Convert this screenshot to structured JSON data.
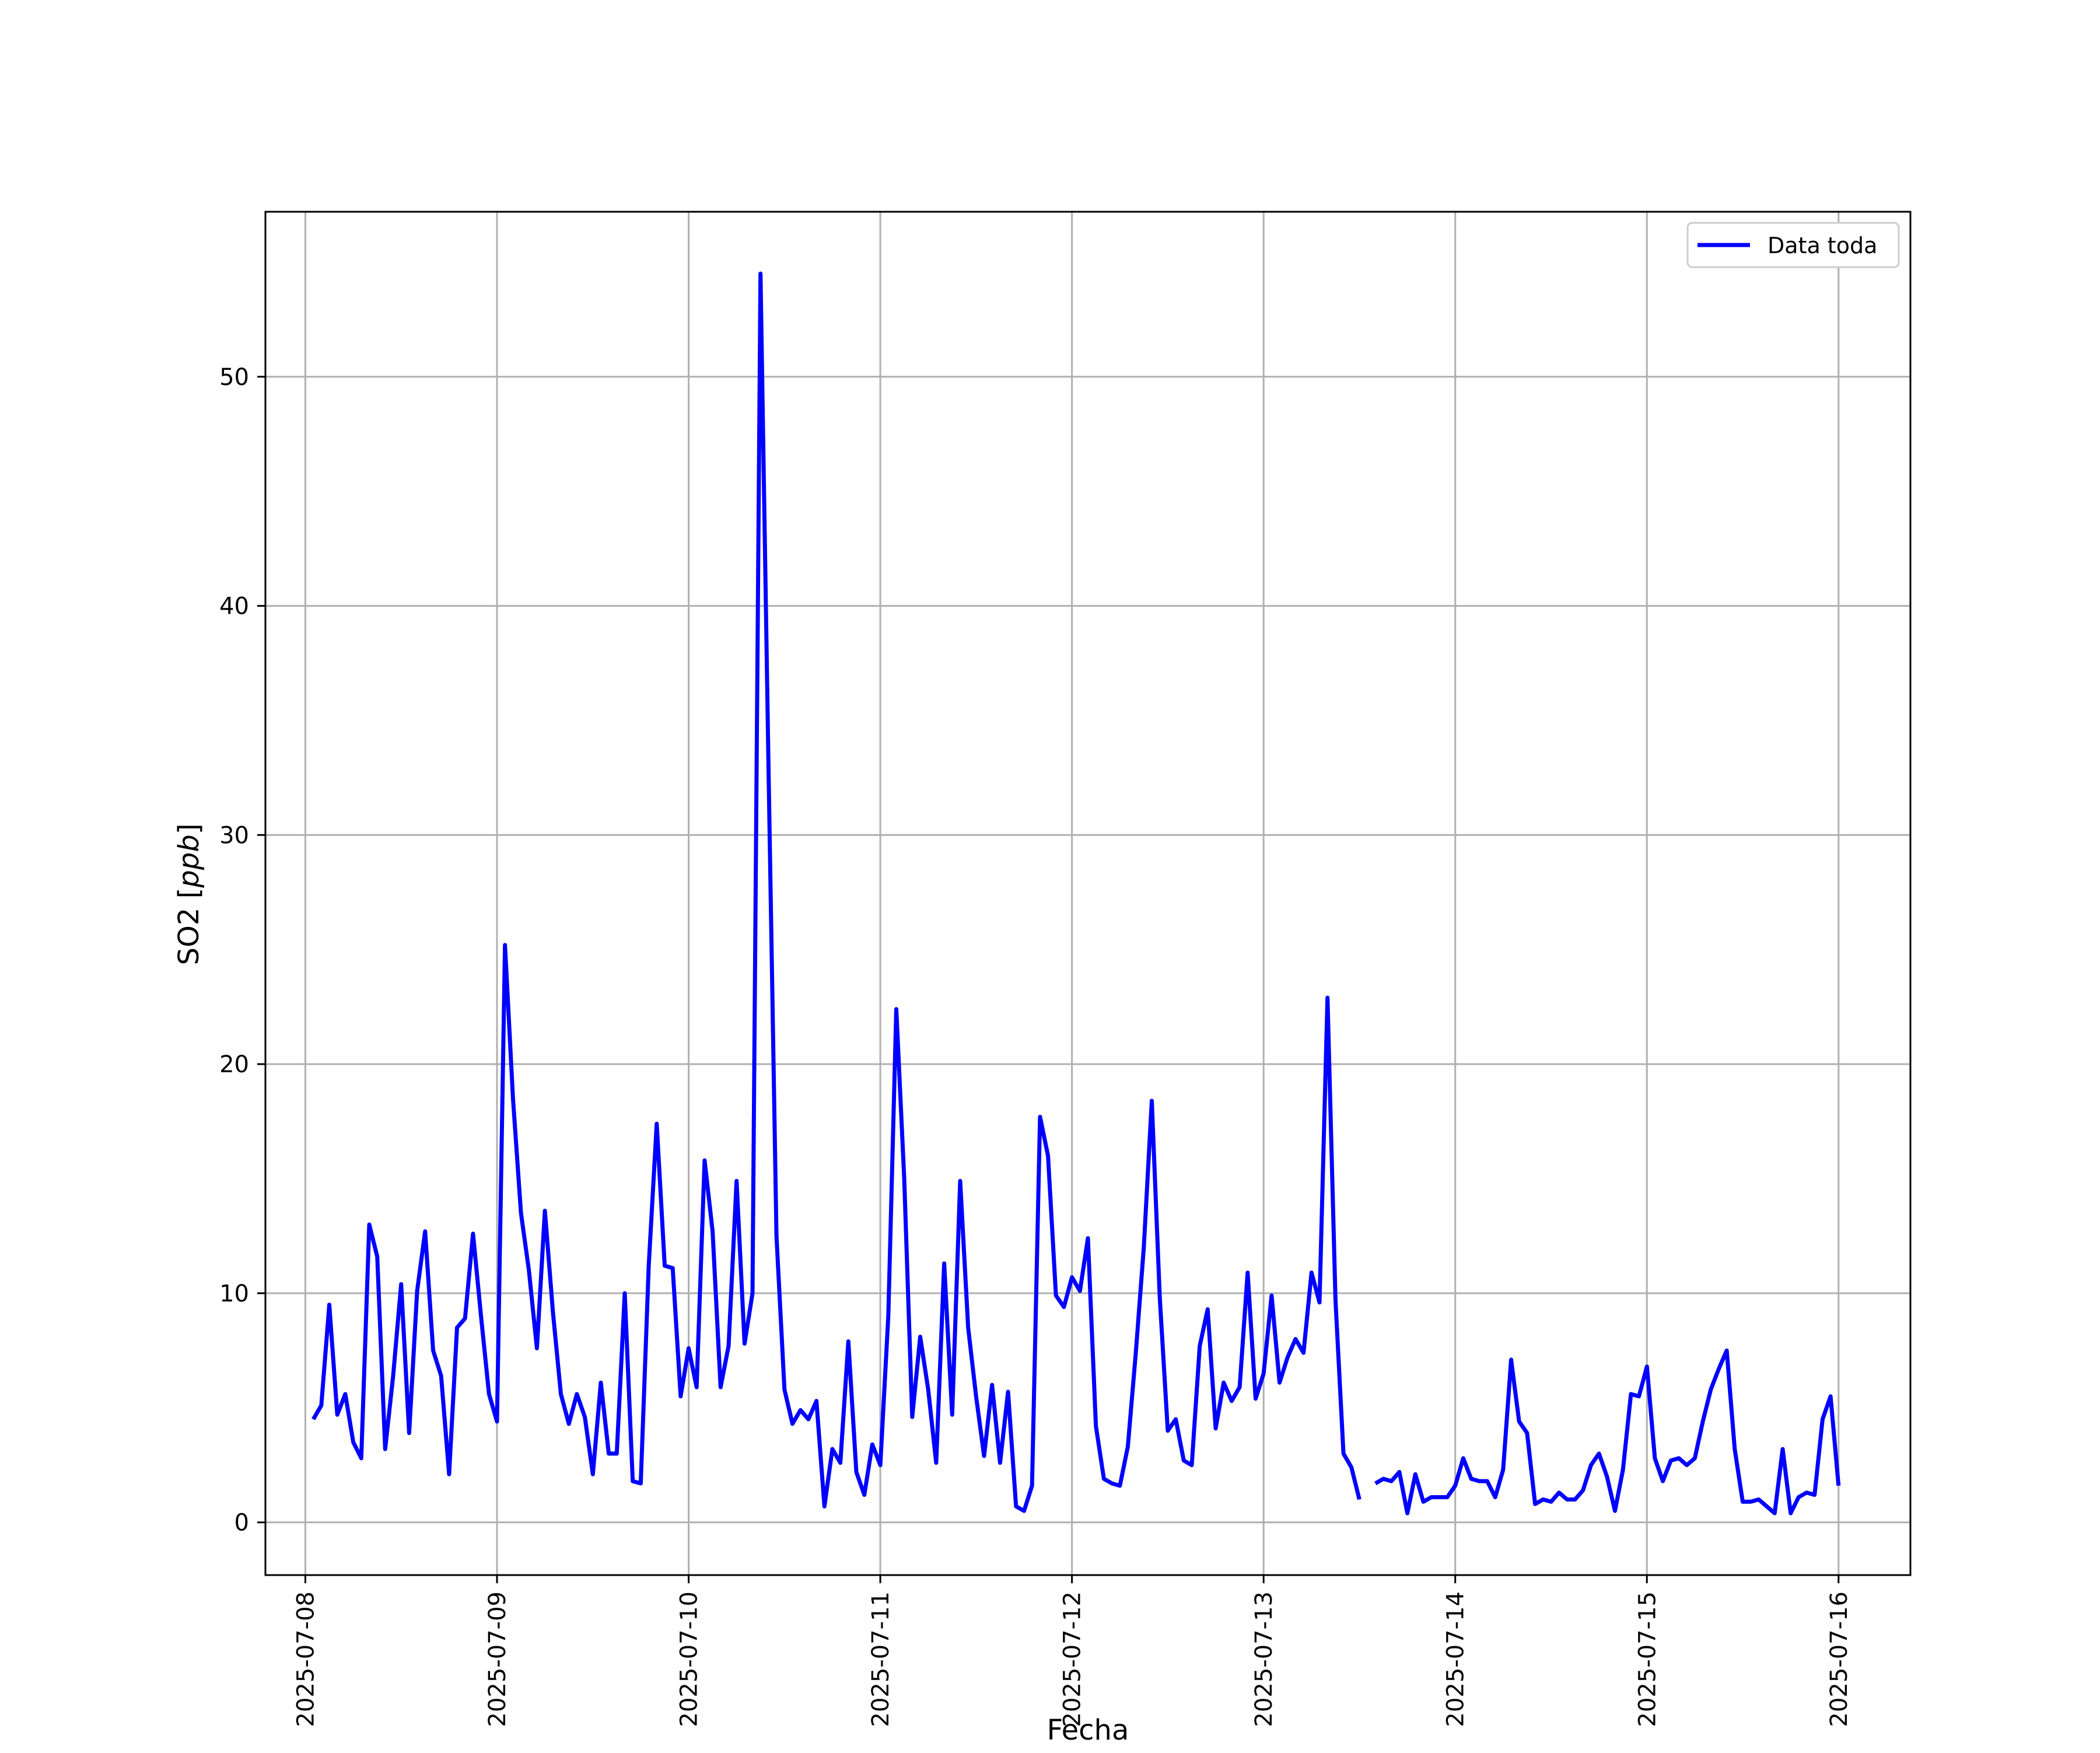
{
  "chart_data": {
    "type": "line",
    "title": "",
    "xlabel": "Fecha",
    "ylabel": "SO2 [ppb]",
    "ylabel_main": "SO2 [",
    "ylabel_unit": "ppb",
    "ylabel_close": "]",
    "xlim": [
      "2025-07-07 19:00",
      "2025-07-16 09:00"
    ],
    "ylim": [
      -2.3,
      57.2
    ],
    "x_ticks": [
      "2025-07-08",
      "2025-07-09",
      "2025-07-10",
      "2025-07-11",
      "2025-07-12",
      "2025-07-13",
      "2025-07-14",
      "2025-07-15",
      "2025-07-16"
    ],
    "y_ticks": [
      0,
      10,
      20,
      30,
      40,
      50
    ],
    "grid": true,
    "legend_position": "top-right",
    "series": [
      {
        "name": "Data toda",
        "color": "#0000ff",
        "points": [
          [
            "2025-07-08 01:00",
            4.5
          ],
          [
            "2025-07-08 02:00",
            5.1
          ],
          [
            "2025-07-08 03:00",
            9.5
          ],
          [
            "2025-07-08 04:00",
            4.7
          ],
          [
            "2025-07-08 05:00",
            5.6
          ],
          [
            "2025-07-08 06:00",
            3.5
          ],
          [
            "2025-07-08 07:00",
            2.8
          ],
          [
            "2025-07-08 08:00",
            13.0
          ],
          [
            "2025-07-08 09:00",
            11.6
          ],
          [
            "2025-07-08 10:00",
            3.2
          ],
          [
            "2025-07-08 11:00",
            6.4
          ],
          [
            "2025-07-08 12:00",
            10.4
          ],
          [
            "2025-07-08 13:00",
            3.9
          ],
          [
            "2025-07-08 14:00",
            10.1
          ],
          [
            "2025-07-08 15:00",
            12.7
          ],
          [
            "2025-07-08 16:00",
            7.5
          ],
          [
            "2025-07-08 17:00",
            6.4
          ],
          [
            "2025-07-08 18:00",
            2.1
          ],
          [
            "2025-07-08 19:00",
            8.5
          ],
          [
            "2025-07-08 20:00",
            8.9
          ],
          [
            "2025-07-08 21:00",
            12.6
          ],
          [
            "2025-07-08 22:00",
            9.0
          ],
          [
            "2025-07-08 23:00",
            5.6
          ],
          [
            "2025-07-09 00:00",
            4.4
          ],
          [
            "2025-07-09 01:00",
            25.2
          ],
          [
            "2025-07-09 02:00",
            18.5
          ],
          [
            "2025-07-09 03:00",
            13.5
          ],
          [
            "2025-07-09 04:00",
            11.0
          ],
          [
            "2025-07-09 05:00",
            7.6
          ],
          [
            "2025-07-09 06:00",
            13.6
          ],
          [
            "2025-07-09 07:00",
            9.2
          ],
          [
            "2025-07-09 08:00",
            5.6
          ],
          [
            "2025-07-09 09:00",
            4.3
          ],
          [
            "2025-07-09 10:00",
            5.6
          ],
          [
            "2025-07-09 11:00",
            4.6
          ],
          [
            "2025-07-09 12:00",
            2.1
          ],
          [
            "2025-07-09 13:00",
            6.1
          ],
          [
            "2025-07-09 14:00",
            3.0
          ],
          [
            "2025-07-09 15:00",
            3.0
          ],
          [
            "2025-07-09 16:00",
            10.0
          ],
          [
            "2025-07-09 17:00",
            1.8
          ],
          [
            "2025-07-09 18:00",
            1.7
          ],
          [
            "2025-07-09 19:00",
            11.2
          ],
          [
            "2025-07-09 20:00",
            17.4
          ],
          [
            "2025-07-09 21:00",
            11.2
          ],
          [
            "2025-07-09 22:00",
            11.1
          ],
          [
            "2025-07-09 23:00",
            5.5
          ],
          [
            "2025-07-10 00:00",
            7.6
          ],
          [
            "2025-07-10 01:00",
            5.9
          ],
          [
            "2025-07-10 02:00",
            15.8
          ],
          [
            "2025-07-10 03:00",
            12.7
          ],
          [
            "2025-07-10 04:00",
            5.9
          ],
          [
            "2025-07-10 05:00",
            7.7
          ],
          [
            "2025-07-10 06:00",
            14.9
          ],
          [
            "2025-07-10 07:00",
            7.8
          ],
          [
            "2025-07-10 08:00",
            10.0
          ],
          [
            "2025-07-10 09:00",
            54.5
          ],
          [
            "2025-07-10 10:00",
            33.0
          ],
          [
            "2025-07-10 11:00",
            12.5
          ],
          [
            "2025-07-10 12:00",
            5.8
          ],
          [
            "2025-07-10 13:00",
            4.3
          ],
          [
            "2025-07-10 14:00",
            4.9
          ],
          [
            "2025-07-10 15:00",
            4.5
          ],
          [
            "2025-07-10 16:00",
            5.3
          ],
          [
            "2025-07-10 17:00",
            0.7
          ],
          [
            "2025-07-10 18:00",
            3.2
          ],
          [
            "2025-07-10 19:00",
            2.6
          ],
          [
            "2025-07-10 20:00",
            7.9
          ],
          [
            "2025-07-10 21:00",
            2.2
          ],
          [
            "2025-07-10 22:00",
            1.2
          ],
          [
            "2025-07-10 23:00",
            3.4
          ],
          [
            "2025-07-11 00:00",
            2.5
          ],
          [
            "2025-07-11 01:00",
            9.0
          ],
          [
            "2025-07-11 02:00",
            22.4
          ],
          [
            "2025-07-11 03:00",
            15.0
          ],
          [
            "2025-07-11 04:00",
            4.6
          ],
          [
            "2025-07-11 05:00",
            8.1
          ],
          [
            "2025-07-11 06:00",
            5.8
          ],
          [
            "2025-07-11 07:00",
            2.6
          ],
          [
            "2025-07-11 08:00",
            11.3
          ],
          [
            "2025-07-11 09:00",
            4.7
          ],
          [
            "2025-07-11 10:00",
            14.9
          ],
          [
            "2025-07-11 11:00",
            8.5
          ],
          [
            "2025-07-11 12:00",
            5.5
          ],
          [
            "2025-07-11 13:00",
            2.9
          ],
          [
            "2025-07-11 14:00",
            6.0
          ],
          [
            "2025-07-11 15:00",
            2.6
          ],
          [
            "2025-07-11 16:00",
            5.7
          ],
          [
            "2025-07-11 17:00",
            0.7
          ],
          [
            "2025-07-11 18:00",
            0.5
          ],
          [
            "2025-07-11 19:00",
            1.6
          ],
          [
            "2025-07-11 20:00",
            17.7
          ],
          [
            "2025-07-11 21:00",
            16.0
          ],
          [
            "2025-07-11 22:00",
            9.9
          ],
          [
            "2025-07-11 23:00",
            9.4
          ],
          [
            "2025-07-12 00:00",
            10.7
          ],
          [
            "2025-07-12 01:00",
            10.1
          ],
          [
            "2025-07-12 02:00",
            12.4
          ],
          [
            "2025-07-12 03:00",
            4.2
          ],
          [
            "2025-07-12 04:00",
            1.9
          ],
          [
            "2025-07-12 05:00",
            1.7
          ],
          [
            "2025-07-12 06:00",
            1.6
          ],
          [
            "2025-07-12 07:00",
            3.3
          ],
          [
            "2025-07-12 08:00",
            7.4
          ],
          [
            "2025-07-12 09:00",
            12.0
          ],
          [
            "2025-07-12 10:00",
            18.4
          ],
          [
            "2025-07-12 11:00",
            9.8
          ],
          [
            "2025-07-12 12:00",
            4.0
          ],
          [
            "2025-07-12 13:00",
            4.5
          ],
          [
            "2025-07-12 14:00",
            2.7
          ],
          [
            "2025-07-12 15:00",
            2.5
          ],
          [
            "2025-07-12 16:00",
            7.7
          ],
          [
            "2025-07-12 17:00",
            9.3
          ],
          [
            "2025-07-12 18:00",
            4.1
          ],
          [
            "2025-07-12 19:00",
            6.1
          ],
          [
            "2025-07-12 20:00",
            5.3
          ],
          [
            "2025-07-12 21:00",
            5.9
          ],
          [
            "2025-07-12 22:00",
            10.9
          ],
          [
            "2025-07-12 23:00",
            5.4
          ],
          [
            "2025-07-13 00:00",
            6.5
          ],
          [
            "2025-07-13 01:00",
            9.9
          ],
          [
            "2025-07-13 02:00",
            6.1
          ],
          [
            "2025-07-13 03:00",
            7.2
          ],
          [
            "2025-07-13 04:00",
            8.0
          ],
          [
            "2025-07-13 05:00",
            7.4
          ],
          [
            "2025-07-13 06:00",
            10.9
          ],
          [
            "2025-07-13 07:00",
            9.6
          ],
          [
            "2025-07-13 08:00",
            22.9
          ],
          [
            "2025-07-13 09:00",
            9.7
          ],
          [
            "2025-07-13 10:00",
            3.0
          ],
          [
            "2025-07-13 11:00",
            2.4
          ],
          [
            "2025-07-13 12:00",
            1.0
          ],
          null,
          [
            "2025-07-13 14:00",
            1.7
          ],
          [
            "2025-07-13 15:00",
            1.9
          ],
          [
            "2025-07-13 16:00",
            1.8
          ],
          [
            "2025-07-13 17:00",
            2.2
          ],
          [
            "2025-07-13 18:00",
            0.4
          ],
          [
            "2025-07-13 19:00",
            2.1
          ],
          [
            "2025-07-13 20:00",
            0.9
          ],
          [
            "2025-07-13 21:00",
            1.1
          ],
          [
            "2025-07-13 22:00",
            1.1
          ],
          [
            "2025-07-13 23:00",
            1.1
          ],
          [
            "2025-07-14 00:00",
            1.6
          ],
          [
            "2025-07-14 01:00",
            2.8
          ],
          [
            "2025-07-14 02:00",
            1.9
          ],
          [
            "2025-07-14 03:00",
            1.8
          ],
          [
            "2025-07-14 04:00",
            1.8
          ],
          [
            "2025-07-14 05:00",
            1.1
          ],
          [
            "2025-07-14 06:00",
            2.3
          ],
          [
            "2025-07-14 07:00",
            7.1
          ],
          [
            "2025-07-14 08:00",
            4.4
          ],
          [
            "2025-07-14 09:00",
            3.9
          ],
          [
            "2025-07-14 10:00",
            0.8
          ],
          [
            "2025-07-14 11:00",
            1.0
          ],
          [
            "2025-07-14 12:00",
            0.9
          ],
          [
            "2025-07-14 13:00",
            1.3
          ],
          [
            "2025-07-14 14:00",
            1.0
          ],
          [
            "2025-07-14 15:00",
            1.0
          ],
          [
            "2025-07-14 16:00",
            1.4
          ],
          [
            "2025-07-14 17:00",
            2.5
          ],
          [
            "2025-07-14 18:00",
            3.0
          ],
          [
            "2025-07-14 19:00",
            2.0
          ],
          [
            "2025-07-14 20:00",
            0.5
          ],
          [
            "2025-07-14 21:00",
            2.3
          ],
          [
            "2025-07-14 22:00",
            5.6
          ],
          [
            "2025-07-14 23:00",
            5.5
          ],
          [
            "2025-07-15 00:00",
            6.8
          ],
          [
            "2025-07-15 01:00",
            2.8
          ],
          [
            "2025-07-15 02:00",
            1.8
          ],
          [
            "2025-07-15 03:00",
            2.7
          ],
          [
            "2025-07-15 04:00",
            2.8
          ],
          [
            "2025-07-15 05:00",
            2.5
          ],
          [
            "2025-07-15 06:00",
            2.8
          ],
          [
            "2025-07-15 07:00",
            4.4
          ],
          [
            "2025-07-15 08:00",
            5.8
          ],
          [
            "2025-07-15 09:00",
            6.7
          ],
          [
            "2025-07-15 10:00",
            7.5
          ],
          [
            "2025-07-15 11:00",
            3.2
          ],
          [
            "2025-07-15 12:00",
            0.9
          ],
          [
            "2025-07-15 13:00",
            0.9
          ],
          [
            "2025-07-15 14:00",
            1.0
          ],
          [
            "2025-07-15 15:00",
            0.7
          ],
          [
            "2025-07-15 16:00",
            0.4
          ],
          [
            "2025-07-15 17:00",
            3.2
          ],
          [
            "2025-07-15 18:00",
            0.4
          ],
          [
            "2025-07-15 19:00",
            1.1
          ],
          [
            "2025-07-15 20:00",
            1.3
          ],
          [
            "2025-07-15 21:00",
            1.2
          ],
          [
            "2025-07-15 22:00",
            4.5
          ],
          [
            "2025-07-15 23:00",
            5.5
          ],
          [
            "2025-07-16 00:00",
            1.6
          ]
        ]
      }
    ]
  }
}
